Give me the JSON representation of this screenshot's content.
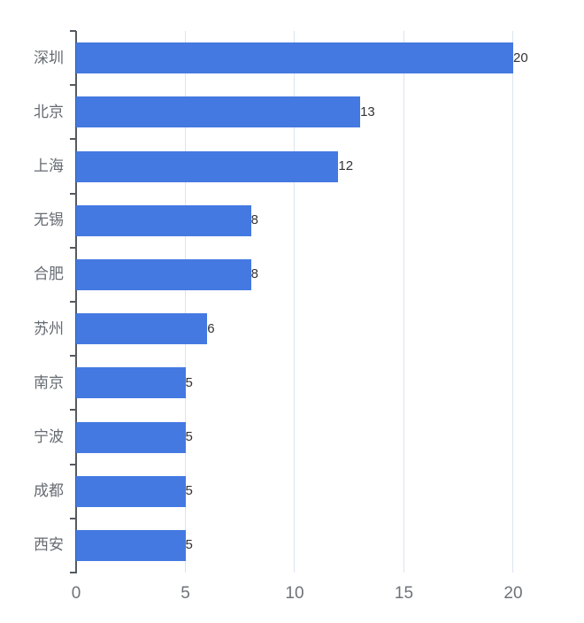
{
  "chart_data": {
    "type": "bar",
    "orientation": "horizontal",
    "title": "",
    "xlabel": "",
    "ylabel": "",
    "categories": [
      "深圳",
      "北京",
      "上海",
      "无锡",
      "合肥",
      "苏州",
      "南京",
      "宁波",
      "成都",
      "西安"
    ],
    "values": [
      20,
      13,
      12,
      8,
      8,
      6,
      5,
      5,
      5,
      5
    ],
    "data_labels": [
      "20",
      "13",
      "12",
      "8",
      "8",
      "6",
      "5",
      "5",
      "5",
      "5"
    ],
    "xlim": [
      0,
      20
    ],
    "x_ticks": [
      "0",
      "5",
      "10",
      "15",
      "20"
    ],
    "grid": "vertical",
    "legend": null,
    "bar_color": "#4479e1"
  }
}
